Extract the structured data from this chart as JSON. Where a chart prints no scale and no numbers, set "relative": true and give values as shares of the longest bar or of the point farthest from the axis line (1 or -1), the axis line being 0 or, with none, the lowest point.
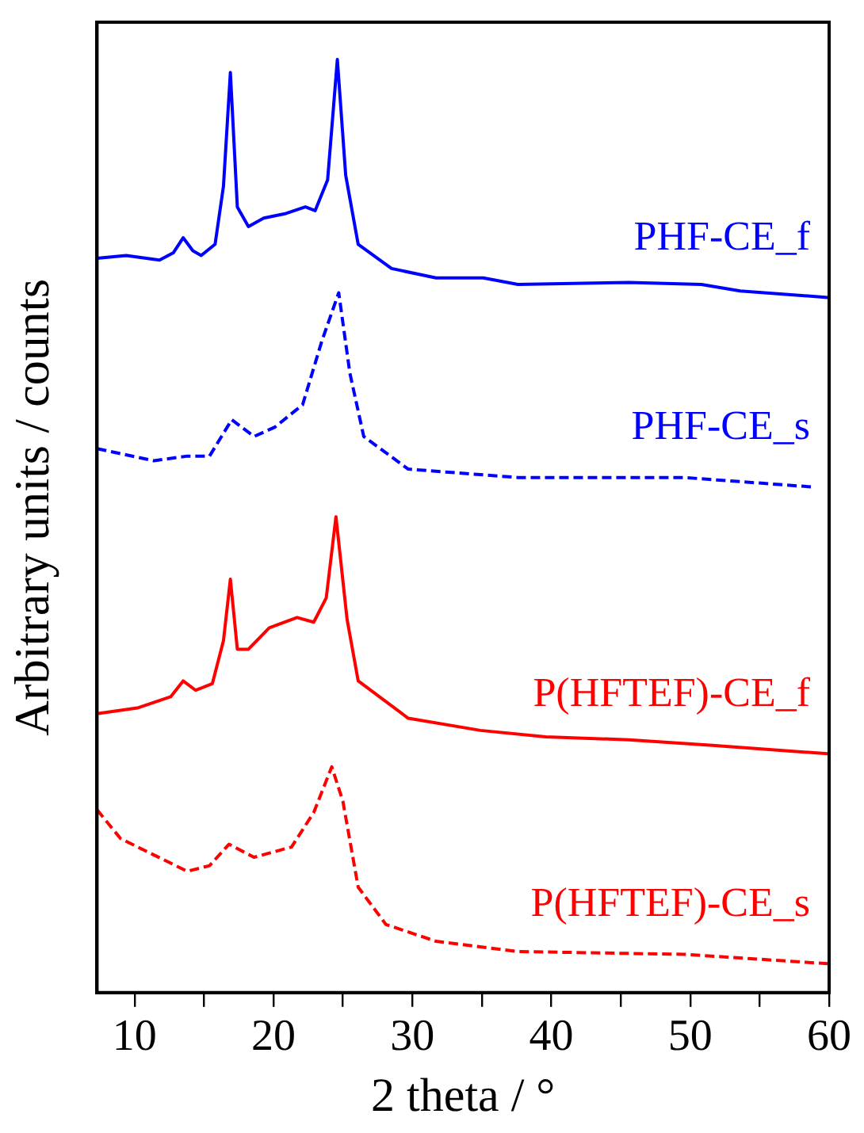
{
  "chart_data": {
    "type": "line",
    "xlabel": "2 theta / °",
    "ylabel": "Arbitrary units / counts",
    "relative": true,
    "xlim": [
      7.3,
      60
    ],
    "xticks": [
      10,
      {
        "value": 15,
        "label": null
      },
      20,
      {
        "value": 25,
        "label": null
      },
      30,
      {
        "value": 35,
        "label": null
      },
      40,
      {
        "value": 45,
        "label": null
      },
      50,
      {
        "value": 55,
        "label": null
      },
      60
    ],
    "tick_labels": "x",
    "grid": false,
    "legend": false,
    "marker": "none",
    "series": [
      {
        "name": "PHF-CE_f",
        "color": "#0000ff",
        "line_style": "solid",
        "x": [
          7.3,
          9.4,
          11.8,
          12.8,
          13.5,
          14.2,
          14.8,
          15.8,
          16.4,
          16.9,
          17.4,
          18.2,
          19.3,
          20.9,
          22.3,
          23.0,
          23.9,
          24.6,
          25.2,
          26.1,
          28.5,
          31.7,
          35.1,
          37.6,
          45.6,
          50.8,
          53.6,
          59.9
        ],
        "values": [
          0.787,
          0.79,
          0.785,
          0.793,
          0.809,
          0.795,
          0.79,
          0.802,
          0.864,
          0.986,
          0.842,
          0.821,
          0.83,
          0.835,
          0.842,
          0.838,
          0.871,
          1.0,
          0.876,
          0.802,
          0.776,
          0.766,
          0.766,
          0.759,
          0.761,
          0.759,
          0.752,
          0.745
        ]
      },
      {
        "name": "PHF-CE_s",
        "color": "#0000ff",
        "line_style": "dashed",
        "x": [
          7.3,
          11.4,
          13.8,
          15.4,
          17.0,
          18.6,
          20.1,
          22.1,
          23.5,
          24.7,
          25.5,
          26.5,
          29.7,
          37.6,
          49.6,
          58.7
        ],
        "values": [
          0.583,
          0.57,
          0.575,
          0.575,
          0.614,
          0.596,
          0.606,
          0.63,
          0.699,
          0.75,
          0.664,
          0.596,
          0.561,
          0.552,
          0.552,
          0.542
        ]
      },
      {
        "name": "P(HFTEF)-CE_f",
        "color": "#ff0000",
        "line_style": "solid",
        "x": [
          7.3,
          10.2,
          12.6,
          13.5,
          14.4,
          15.6,
          16.4,
          16.9,
          17.4,
          18.2,
          19.7,
          21.7,
          22.9,
          23.8,
          24.5,
          25.3,
          26.1,
          29.7,
          34.9,
          39.6,
          45.6,
          51.6,
          59.9
        ],
        "values": [
          0.299,
          0.305,
          0.317,
          0.334,
          0.324,
          0.331,
          0.377,
          0.443,
          0.368,
          0.368,
          0.391,
          0.402,
          0.397,
          0.423,
          0.51,
          0.4,
          0.334,
          0.294,
          0.281,
          0.274,
          0.271,
          0.265,
          0.256
        ]
      },
      {
        "name": "P(HFTEF)-CE_s",
        "color": "#ff0000",
        "line_style": "dashed",
        "x": [
          7.3,
          9.0,
          13.8,
          15.4,
          16.8,
          18.6,
          21.3,
          22.9,
          24.2,
          25.0,
          26.1,
          28.1,
          31.7,
          37.6,
          49.6,
          59.9
        ],
        "values": [
          0.196,
          0.165,
          0.13,
          0.136,
          0.159,
          0.145,
          0.156,
          0.193,
          0.242,
          0.205,
          0.113,
          0.073,
          0.055,
          0.044,
          0.041,
          0.031
        ]
      }
    ]
  }
}
